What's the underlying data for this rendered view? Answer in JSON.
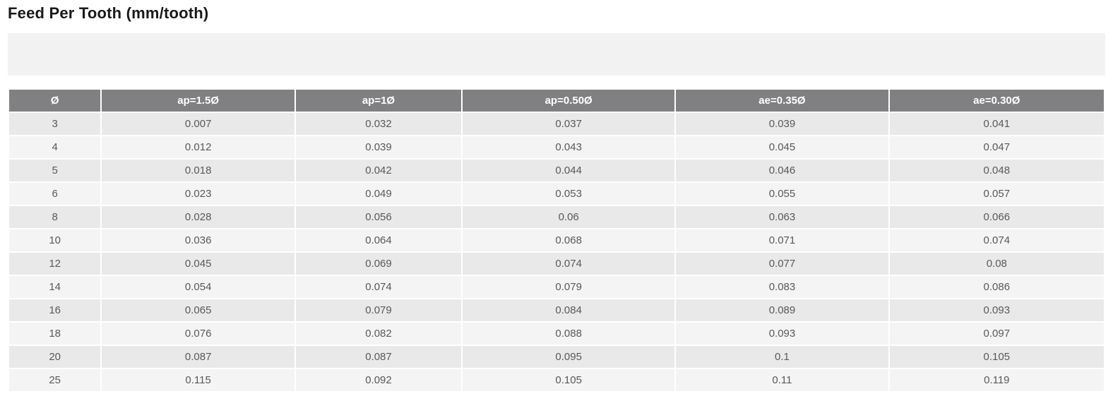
{
  "page": {
    "title": "Feed Per Tooth (mm/tooth)"
  },
  "colors": {
    "header_bg": "#808083",
    "header_text": "#ffffff",
    "row_odd_bg": "#e9e9e9",
    "row_even_bg": "#f4f4f4",
    "band_bg": "#f2f2f2",
    "body_text": "#58595b",
    "title_text": "#1a1a1a"
  },
  "chart_data": {
    "type": "table",
    "title": "Feed Per Tooth (mm/tooth)",
    "columns": [
      "Ø",
      "ap=1.5Ø",
      "ap=1Ø",
      "ap=0.50Ø",
      "ae=0.35Ø",
      "ae=0.30Ø"
    ],
    "rows": [
      [
        "3",
        "0.007",
        "0.032",
        "0.037",
        "0.039",
        "0.041"
      ],
      [
        "4",
        "0.012",
        "0.039",
        "0.043",
        "0.045",
        "0.047"
      ],
      [
        "5",
        "0.018",
        "0.042",
        "0.044",
        "0.046",
        "0.048"
      ],
      [
        "6",
        "0.023",
        "0.049",
        "0.053",
        "0.055",
        "0.057"
      ],
      [
        "8",
        "0.028",
        "0.056",
        "0.06",
        "0.063",
        "0.066"
      ],
      [
        "10",
        "0.036",
        "0.064",
        "0.068",
        "0.071",
        "0.074"
      ],
      [
        "12",
        "0.045",
        "0.069",
        "0.074",
        "0.077",
        "0.08"
      ],
      [
        "14",
        "0.054",
        "0.074",
        "0.079",
        "0.083",
        "0.086"
      ],
      [
        "16",
        "0.065",
        "0.079",
        "0.084",
        "0.089",
        "0.093"
      ],
      [
        "18",
        "0.076",
        "0.082",
        "0.088",
        "0.093",
        "0.097"
      ],
      [
        "20",
        "0.087",
        "0.087",
        "0.095",
        "0.1",
        "0.105"
      ],
      [
        "25",
        "0.115",
        "0.092",
        "0.105",
        "0.11",
        "0.119"
      ]
    ]
  }
}
